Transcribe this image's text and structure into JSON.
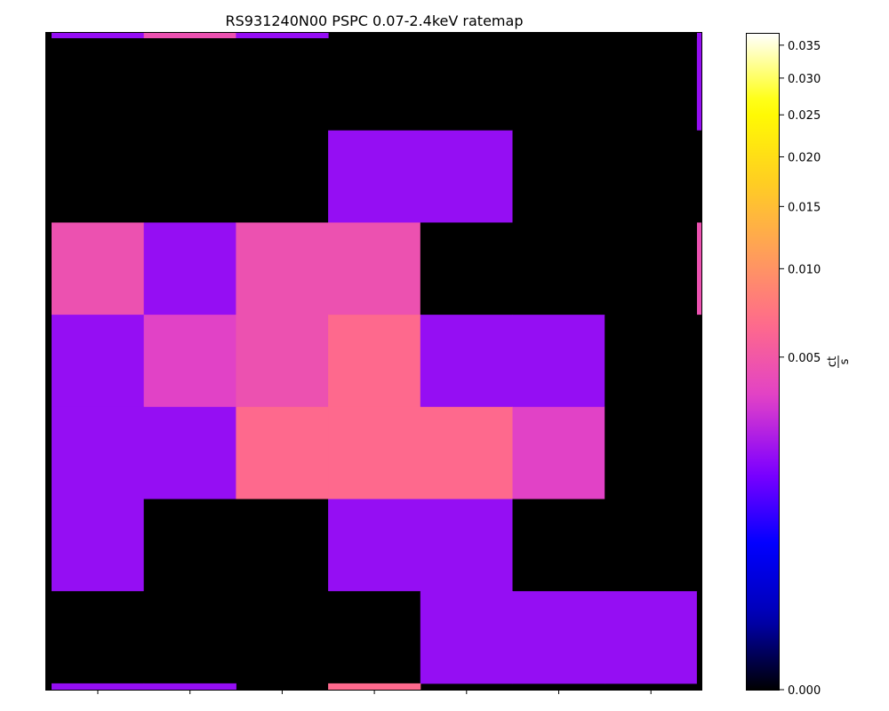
{
  "chart_data": {
    "type": "heatmap",
    "title": "RS931240N00 PSPC 0.07-2.4keV ratemap",
    "xlabel": "",
    "ylabel": "",
    "colorbar": {
      "label_numerator": "ct",
      "label_denominator": "s",
      "range": [
        0.0,
        0.037
      ],
      "scale": "power-stretch",
      "tick_values": [
        0.0,
        0.005,
        0.01,
        0.015,
        0.02,
        0.025,
        0.03,
        0.035
      ],
      "tick_labels": [
        "0.000",
        "0.005",
        "0.010",
        "0.015",
        "0.020",
        "0.025",
        "0.030",
        "0.035"
      ],
      "colormap_stops": [
        "#000000",
        "#0000b4",
        "#0000ff",
        "#8000ff",
        "#e040c8",
        "#ff6a8c",
        "#ff9f58",
        "#ffd020",
        "#ffff00",
        "#ffffff"
      ]
    },
    "grid": "off",
    "rows_top_to_bottom": [
      [
        0,
        0,
        0,
        0,
        0,
        0,
        0,
        0.0018
      ],
      [
        0,
        0,
        0,
        0.0018,
        0.0018,
        0,
        0,
        0
      ],
      [
        0.0045,
        0.0018,
        0.0045,
        0.0045,
        0,
        0,
        0,
        0
      ],
      [
        0.0018,
        0.0035,
        0.0045,
        0.0065,
        0.0018,
        0.0018,
        0,
        0
      ],
      [
        0.0018,
        0.0018,
        0.0065,
        0.0065,
        0.0065,
        0.0035,
        0,
        0
      ],
      [
        0.0018,
        0,
        0,
        0.0018,
        0.0018,
        0,
        0,
        0
      ],
      [
        0,
        0,
        0,
        0,
        0.0018,
        0.0018,
        0.0018,
        0
      ]
    ],
    "top_edge_strip": [
      0.0018,
      0.0045,
      0.0018,
      0,
      0,
      0,
      0,
      0
    ],
    "bottom_edge_strip": [
      0.0018,
      0.0018,
      0,
      0.0065,
      0,
      0,
      0,
      0
    ],
    "right_edge_strip": [
      0.0018,
      0,
      0,
      0.0045,
      0,
      0,
      0,
      0,
      0
    ]
  }
}
